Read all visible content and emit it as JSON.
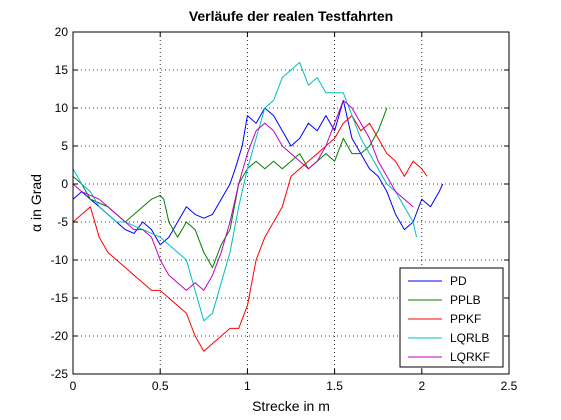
{
  "chart_data": {
    "type": "line",
    "title": "Verläufe der realen Testfahrten",
    "xlabel": "Strecke in m",
    "ylabel": "α in Grad",
    "xlim": [
      0,
      2.5
    ],
    "ylim": [
      -25,
      20
    ],
    "xticks": [
      "0",
      "0.5",
      "1",
      "1.5",
      "2",
      "2.5"
    ],
    "yticks": [
      "-25",
      "-20",
      "-15",
      "-10",
      "-5",
      "0",
      "5",
      "10",
      "15",
      "20"
    ],
    "grid": "dotted",
    "legend_position": "bottom-right",
    "series": [
      {
        "name": "PD",
        "color": "#0000ff",
        "points": [
          [
            0,
            -2
          ],
          [
            0.05,
            -1
          ],
          [
            0.1,
            -2
          ],
          [
            0.15,
            -3
          ],
          [
            0.2,
            -4
          ],
          [
            0.25,
            -5
          ],
          [
            0.3,
            -6
          ],
          [
            0.35,
            -6.5
          ],
          [
            0.4,
            -5
          ],
          [
            0.45,
            -6
          ],
          [
            0.5,
            -8
          ],
          [
            0.55,
            -7
          ],
          [
            0.6,
            -5
          ],
          [
            0.65,
            -3
          ],
          [
            0.7,
            -4
          ],
          [
            0.75,
            -4.5
          ],
          [
            0.8,
            -4
          ],
          [
            0.85,
            -2
          ],
          [
            0.9,
            0
          ],
          [
            0.93,
            2
          ],
          [
            0.97,
            5
          ],
          [
            1.0,
            9
          ],
          [
            1.05,
            8
          ],
          [
            1.1,
            10
          ],
          [
            1.15,
            9
          ],
          [
            1.2,
            7
          ],
          [
            1.25,
            5
          ],
          [
            1.3,
            6
          ],
          [
            1.35,
            8
          ],
          [
            1.4,
            7
          ],
          [
            1.45,
            9
          ],
          [
            1.5,
            7
          ],
          [
            1.55,
            11
          ],
          [
            1.6,
            6
          ],
          [
            1.65,
            4
          ],
          [
            1.7,
            2
          ],
          [
            1.75,
            1
          ],
          [
            1.8,
            -1
          ],
          [
            1.85,
            -4
          ],
          [
            1.9,
            -6
          ],
          [
            1.95,
            -5
          ],
          [
            2.0,
            -2
          ],
          [
            2.05,
            -3
          ],
          [
            2.1,
            -1
          ],
          [
            2.12,
            0
          ]
        ]
      },
      {
        "name": "PPLB",
        "color": "#007f00",
        "points": [
          [
            0,
            1
          ],
          [
            0.05,
            0
          ],
          [
            0.1,
            -2
          ],
          [
            0.15,
            -2.5
          ],
          [
            0.2,
            -3
          ],
          [
            0.25,
            -4
          ],
          [
            0.3,
            -5
          ],
          [
            0.35,
            -4
          ],
          [
            0.4,
            -3
          ],
          [
            0.45,
            -2
          ],
          [
            0.5,
            -1.5
          ],
          [
            0.52,
            -2
          ],
          [
            0.55,
            -5
          ],
          [
            0.6,
            -7
          ],
          [
            0.65,
            -5
          ],
          [
            0.7,
            -6
          ],
          [
            0.75,
            -9
          ],
          [
            0.8,
            -11
          ],
          [
            0.85,
            -8
          ],
          [
            0.9,
            -6
          ],
          [
            0.95,
            0
          ],
          [
            1.0,
            2
          ],
          [
            1.05,
            3
          ],
          [
            1.1,
            2
          ],
          [
            1.15,
            3
          ],
          [
            1.2,
            2
          ],
          [
            1.25,
            3
          ],
          [
            1.3,
            4
          ],
          [
            1.35,
            2
          ],
          [
            1.4,
            3
          ],
          [
            1.45,
            4
          ],
          [
            1.5,
            3
          ],
          [
            1.55,
            6
          ],
          [
            1.6,
            4
          ],
          [
            1.65,
            4
          ],
          [
            1.7,
            5
          ],
          [
            1.75,
            7
          ],
          [
            1.8,
            10
          ]
        ]
      },
      {
        "name": "PPKF",
        "color": "#ff0000",
        "points": [
          [
            0,
            -5
          ],
          [
            0.05,
            -4
          ],
          [
            0.1,
            -3
          ],
          [
            0.15,
            -7
          ],
          [
            0.2,
            -9
          ],
          [
            0.25,
            -10
          ],
          [
            0.3,
            -11
          ],
          [
            0.35,
            -12
          ],
          [
            0.4,
            -13
          ],
          [
            0.45,
            -14
          ],
          [
            0.5,
            -14
          ],
          [
            0.55,
            -15
          ],
          [
            0.6,
            -16
          ],
          [
            0.65,
            -17
          ],
          [
            0.7,
            -20
          ],
          [
            0.75,
            -22
          ],
          [
            0.8,
            -21
          ],
          [
            0.85,
            -20
          ],
          [
            0.9,
            -19
          ],
          [
            0.95,
            -19
          ],
          [
            1.0,
            -16
          ],
          [
            1.05,
            -10
          ],
          [
            1.1,
            -7
          ],
          [
            1.15,
            -5
          ],
          [
            1.2,
            -3
          ],
          [
            1.25,
            1
          ],
          [
            1.3,
            2
          ],
          [
            1.35,
            3
          ],
          [
            1.4,
            4
          ],
          [
            1.45,
            5
          ],
          [
            1.5,
            6
          ],
          [
            1.55,
            8
          ],
          [
            1.6,
            9
          ],
          [
            1.65,
            7
          ],
          [
            1.7,
            8
          ],
          [
            1.75,
            6
          ],
          [
            1.8,
            4
          ],
          [
            1.85,
            3
          ],
          [
            1.9,
            1
          ],
          [
            1.95,
            3
          ],
          [
            2.0,
            2
          ],
          [
            2.03,
            1
          ]
        ]
      },
      {
        "name": "LQRLB",
        "color": "#00bfbf",
        "points": [
          [
            0,
            2
          ],
          [
            0.05,
            0
          ],
          [
            0.1,
            -1
          ],
          [
            0.15,
            -3
          ],
          [
            0.2,
            -4
          ],
          [
            0.25,
            -5
          ],
          [
            0.3,
            -5
          ],
          [
            0.35,
            -5.5
          ],
          [
            0.4,
            -6
          ],
          [
            0.45,
            -6.5
          ],
          [
            0.5,
            -7
          ],
          [
            0.55,
            -8
          ],
          [
            0.6,
            -9
          ],
          [
            0.65,
            -10
          ],
          [
            0.7,
            -14
          ],
          [
            0.75,
            -18
          ],
          [
            0.8,
            -17
          ],
          [
            0.85,
            -13
          ],
          [
            0.9,
            -9
          ],
          [
            0.95,
            -3
          ],
          [
            1.0,
            2
          ],
          [
            1.05,
            6
          ],
          [
            1.1,
            10
          ],
          [
            1.15,
            11
          ],
          [
            1.2,
            14
          ],
          [
            1.25,
            15
          ],
          [
            1.3,
            16
          ],
          [
            1.35,
            13
          ],
          [
            1.4,
            14
          ],
          [
            1.45,
            12
          ],
          [
            1.5,
            12
          ],
          [
            1.55,
            12
          ],
          [
            1.6,
            9
          ],
          [
            1.65,
            6
          ],
          [
            1.7,
            4
          ],
          [
            1.75,
            2
          ],
          [
            1.8,
            0
          ],
          [
            1.85,
            -1
          ],
          [
            1.9,
            -3
          ],
          [
            1.95,
            -5
          ],
          [
            1.97,
            -7
          ]
        ]
      },
      {
        "name": "LQRKF",
        "color": "#bf00bf",
        "points": [
          [
            0,
            0
          ],
          [
            0.05,
            -1
          ],
          [
            0.1,
            -1.5
          ],
          [
            0.15,
            -2
          ],
          [
            0.2,
            -3
          ],
          [
            0.25,
            -4
          ],
          [
            0.3,
            -5
          ],
          [
            0.35,
            -6
          ],
          [
            0.4,
            -6
          ],
          [
            0.45,
            -7
          ],
          [
            0.5,
            -10
          ],
          [
            0.55,
            -12
          ],
          [
            0.6,
            -13
          ],
          [
            0.65,
            -14
          ],
          [
            0.7,
            -13
          ],
          [
            0.75,
            -14
          ],
          [
            0.8,
            -12
          ],
          [
            0.85,
            -9
          ],
          [
            0.9,
            -5
          ],
          [
            0.95,
            0
          ],
          [
            1.0,
            4
          ],
          [
            1.05,
            7
          ],
          [
            1.1,
            8
          ],
          [
            1.15,
            7
          ],
          [
            1.2,
            5
          ],
          [
            1.25,
            4
          ],
          [
            1.3,
            3
          ],
          [
            1.35,
            2
          ],
          [
            1.4,
            3
          ],
          [
            1.45,
            5
          ],
          [
            1.5,
            8
          ],
          [
            1.55,
            11
          ],
          [
            1.6,
            10
          ],
          [
            1.65,
            8
          ],
          [
            1.7,
            6
          ],
          [
            1.75,
            3
          ],
          [
            1.8,
            1
          ],
          [
            1.85,
            -1
          ],
          [
            1.9,
            -2
          ],
          [
            1.95,
            -3
          ]
        ]
      }
    ]
  }
}
